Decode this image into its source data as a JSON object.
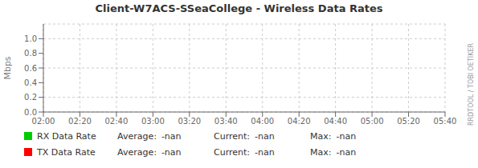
{
  "chart_data": {
    "type": "line",
    "title": "Client-W7ACS-SSeaCollege - Wireless Data Rates",
    "ylabel": "Mbps",
    "categories": [
      "02:00",
      "02:20",
      "02:40",
      "03:00",
      "03:20",
      "03:40",
      "04:00",
      "04:20",
      "04:40",
      "05:00",
      "05:20",
      "05:40"
    ],
    "series": [
      {
        "name": "RX Data Rate",
        "color": "#00cc00",
        "values": [
          null,
          null,
          null,
          null,
          null,
          null,
          null,
          null,
          null,
          null,
          null,
          null
        ],
        "stats": [
          "-nan",
          "-nan",
          "-nan"
        ]
      },
      {
        "name": "TX Data Rate",
        "color": "#ff0000",
        "values": [
          null,
          null,
          null,
          null,
          null,
          null,
          null,
          null,
          null,
          null,
          null,
          null
        ],
        "stats": [
          "-nan",
          "-nan",
          "-nan"
        ]
      }
    ],
    "stat_labels": [
      "Average:",
      "Current:",
      "Max:"
    ],
    "watermark": "RRDTOOL / TOBI OETIKER",
    "ylim": [
      0.0,
      1.2
    ],
    "yticks": [
      {
        "value": 0,
        "label": "0.0"
      },
      0.2,
      0.4,
      0.6,
      0.8,
      {
        "value": 1,
        "label": "1.0"
      }
    ],
    "grid": true,
    "legend": "bottom"
  }
}
